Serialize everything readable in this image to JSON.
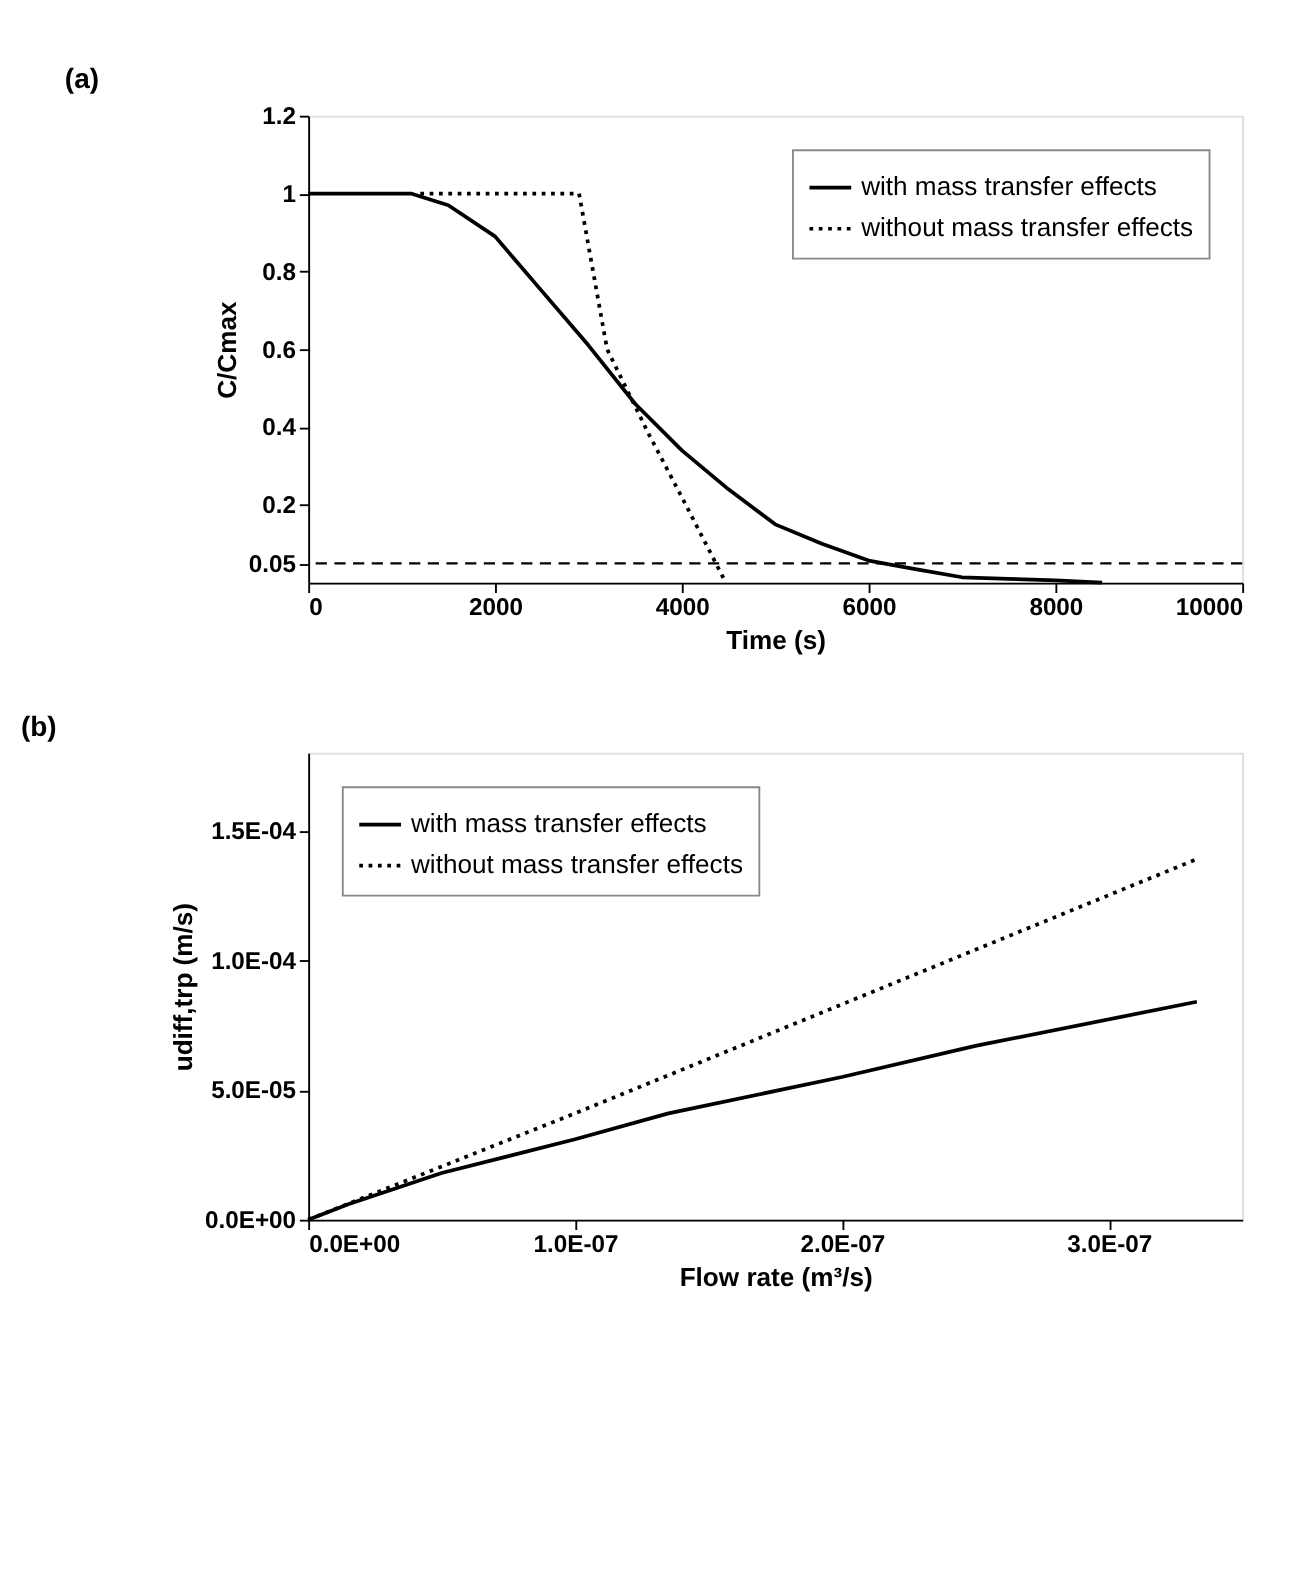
{
  "chart_data": [
    {
      "type": "line",
      "title": "(a)",
      "xlabel": "Time (s)",
      "ylabel": "C/Cmax",
      "xlim": [
        0,
        10000
      ],
      "ylim": [
        0,
        1.2
      ],
      "xticks": [
        0,
        2000,
        4000,
        6000,
        8000,
        10000
      ],
      "yticks": [
        0.05,
        0.2,
        0.4,
        0.6,
        0.8,
        1,
        1.2
      ],
      "grid": false,
      "legend": "top right",
      "ref_lines": [
        {
          "axis": "y",
          "value": 0.05,
          "line_style": "dashed",
          "color": "#000000"
        }
      ],
      "series": [
        {
          "name": "with mass transfer effects",
          "color": "#000000",
          "line_style": "solid",
          "x": [
            0,
            1100,
            1500,
            2000,
            2500,
            3000,
            3500,
            4000,
            4500,
            5000,
            5500,
            6000,
            6500,
            7000,
            7500,
            8000,
            8500
          ],
          "values": [
            1,
            1,
            0.97,
            0.89,
            0.75,
            0.61,
            0.46,
            0.34,
            0.24,
            0.15,
            0.1,
            0.057,
            0.035,
            0.014,
            0.01,
            0.006,
            0
          ]
        },
        {
          "name": "without mass transfer effects",
          "color": "#000000",
          "line_style": "dotted",
          "x": [
            1200,
            2900,
            3200,
            3650,
            4000,
            4450
          ],
          "values": [
            1,
            1,
            0.6,
            0.38,
            0.22,
            0.01
          ]
        }
      ]
    },
    {
      "type": "line",
      "title": "(b)",
      "xlabel": "Flow rate (m³/s)",
      "ylabel": "udiff,trp (m/s)",
      "xlim": [
        0,
        3.5e-07
      ],
      "ylim": [
        0,
        0.00018
      ],
      "xticks": [
        {
          "value": 0,
          "label": "0.0E+00"
        },
        {
          "value": 1e-07,
          "label": "1.0E-07"
        },
        {
          "value": 2e-07,
          "label": "2.0E-07"
        },
        {
          "value": 3e-07,
          "label": "3.0E-07"
        }
      ],
      "yticks": [
        {
          "value": 0,
          "label": "0.0E+00"
        },
        {
          "value": 5e-05,
          "label": "5.0E-05"
        },
        {
          "value": 0.0001,
          "label": "1.0E-04"
        },
        {
          "value": 0.00015,
          "label": "1.5E-04"
        }
      ],
      "grid": false,
      "legend": "top left",
      "series": [
        {
          "name": "with mass transfer effects",
          "color": "#000000",
          "line_style": "solid",
          "x": [
            0,
            1.5e-08,
            5e-08,
            1e-07,
            1.35e-07,
            2e-07,
            2.5e-07,
            3.33e-07
          ],
          "values": [
            0,
            6e-06,
            1.8e-05,
            3.1e-05,
            4.1e-05,
            5.5e-05,
            6.7e-05,
            8.4e-05
          ]
        },
        {
          "name": "without mass transfer effects",
          "color": "#000000",
          "line_style": "dotted",
          "x": [
            0,
            1e-07,
            2e-07,
            3.33e-07
          ],
          "values": [
            0,
            4.1e-05,
            8.3e-05,
            0.000139
          ]
        }
      ]
    }
  ]
}
